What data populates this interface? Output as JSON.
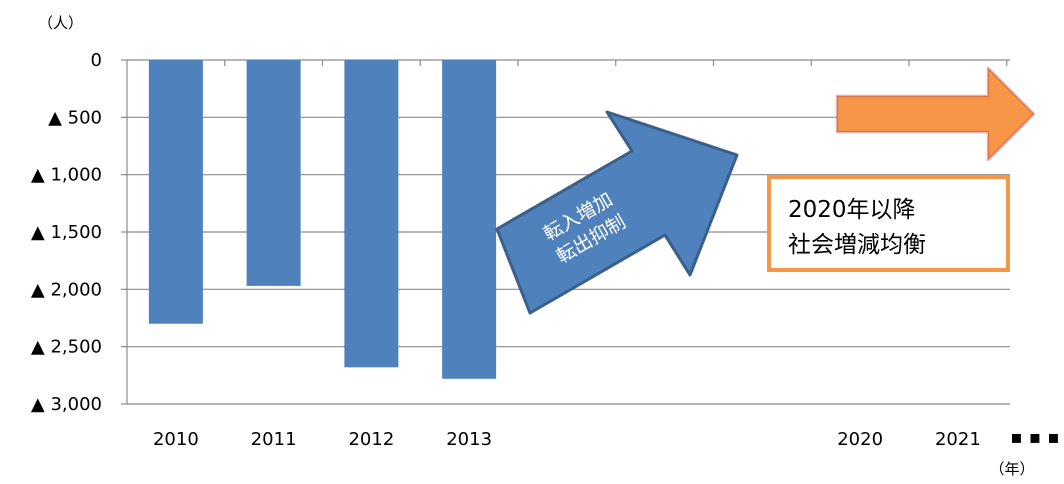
{
  "chart_data": {
    "type": "bar",
    "y_unit_label": "（人）",
    "x_unit_label": "（年）",
    "categories": [
      "2010",
      "2011",
      "2012",
      "2013",
      "2020",
      "2021"
    ],
    "values": [
      -2300,
      -1970,
      -2680,
      -2780,
      null,
      null
    ],
    "ylim": [
      -3000,
      0
    ],
    "yticks": [
      0,
      -500,
      -1000,
      -1500,
      -2000,
      -2500,
      -3000
    ],
    "ytick_labels": [
      "0",
      "▲ 500",
      "▲ 1,000",
      "▲ 1,500",
      "▲ 2,000",
      "▲ 2,500",
      "▲ 3,000"
    ],
    "continuation_mark": "▪ ▪ ▪",
    "grid": true,
    "bar_color": "#4f81bd",
    "annotations": {
      "blue_arrow": {
        "line1": "転入増加",
        "line2": "転出抑制",
        "color": "#4f81bd"
      },
      "orange_arrow": {
        "color": "#f79646"
      },
      "callout": {
        "line1": "2020年以降",
        "line2": "社会増減均衡",
        "border_color": "#f79646"
      }
    }
  }
}
